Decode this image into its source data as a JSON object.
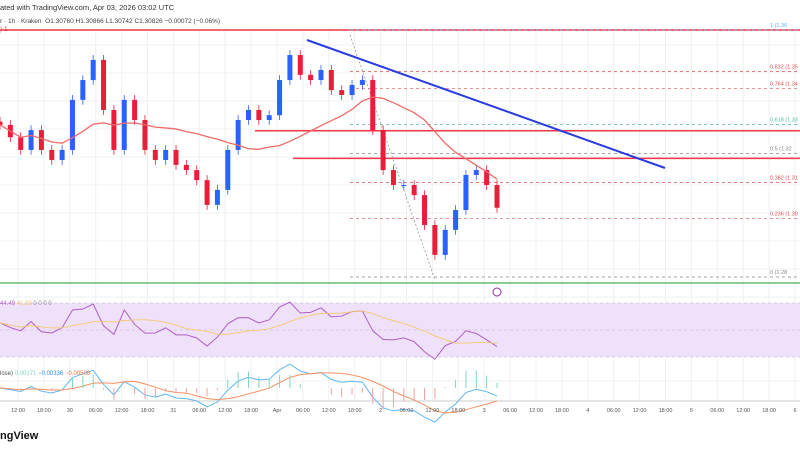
{
  "header": {
    "watermark": "ated with TradingView.com, Apr 03, 2026 03:02 UTC",
    "symbol": "r · 1h · Kraken",
    "ohlc": "O1.30760  H1.30866  L1.30742  C1.30826  −0.00072 (−0.06%)",
    "line2": ") 1"
  },
  "colors": {
    "up": "#2962ff",
    "down": "#e91e3a",
    "ma": "#f06a6a",
    "trend": "#2a3be0",
    "rsi": "#b05cc8",
    "rsi_ma": "#f5c970",
    "macd": "#5fb8f5",
    "signal": "#f59060",
    "sr": "#f23645",
    "support": "#4caf50"
  },
  "rsi": {
    "value": "44.49",
    "ma": "41.38",
    "extra": "0  0  0  0"
  },
  "macd": {
    "label": "lose)",
    "hist": "0.00171",
    "macd": "−0.00336",
    "signal": "−0.00506"
  },
  "footer": {
    "logo": "ngView"
  },
  "chart_data": {
    "type": "candlestick",
    "title": "",
    "interval": "1h",
    "closes": [
      1.3338,
      1.33,
      1.3261,
      1.3322,
      1.3261,
      1.323,
      1.3261,
      1.3415,
      1.3476,
      1.3538,
      1.3384,
      1.3261,
      1.3415,
      1.3353,
      1.3261,
      1.323,
      1.3261,
      1.3215,
      1.3199,
      1.3168,
      1.3092,
      1.3138,
      1.3261,
      1.3353,
      1.3384,
      1.3353,
      1.3368,
      1.3476,
      1.3553,
      1.3492,
      1.3476,
      1.3507,
      1.3445,
      1.343,
      1.3461,
      1.3476,
      1.3322,
      1.3199,
      1.3153,
      1.3153,
      1.3122,
      1.303,
      1.2938,
      1.3015,
      1.3076,
      1.3184,
      1.3199,
      1.3153,
      1.3083
    ],
    "ylim": [
      1.287,
      1.363
    ],
    "fib_levels": [
      {
        "r": "1",
        "label": "1 (1.36"
      },
      {
        "r": "0.832",
        "label": "0.832 (1.35"
      },
      {
        "r": "0.764",
        "label": "0.764 (1.34"
      },
      {
        "r": "0.618",
        "label": "0.618 (1.33"
      },
      {
        "r": "0.5",
        "label": "0.5 (1.32"
      },
      {
        "r": "0.382",
        "label": "0.382 (1.31"
      },
      {
        "r": "0.236",
        "label": "0.236 (1.30"
      },
      {
        "r": "0",
        "label": "0 (1.28"
      }
    ],
    "resistance_levels": [
      1.363,
      1.332,
      1.3235
    ],
    "support_level": 1.285,
    "x_ticks": [
      "12:00",
      "18:00",
      "30",
      "06:00",
      "12:00",
      "18:00",
      "31",
      "06:00",
      "12:00",
      "18:00",
      "Apr",
      "06:00",
      "12:00",
      "18:00",
      "2",
      "06:00",
      "12:00",
      "18:00",
      "3",
      "06:00",
      "12:00",
      "18:00",
      "4",
      "06:00",
      "12:00",
      "18:00",
      "5",
      "06:00",
      "12:00",
      "18:00",
      "6"
    ]
  }
}
